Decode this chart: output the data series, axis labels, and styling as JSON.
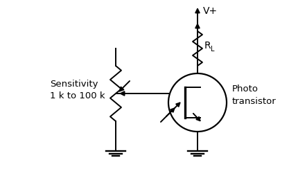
{
  "bg_color": "#ffffff",
  "line_color": "#000000",
  "fig_width": 4.3,
  "fig_height": 2.57,
  "dpi": 100,
  "sensitivity_label": "Sensitivity\n1 k to 100 k",
  "photo_label": "Photo\ntransistor",
  "vplus_label": "V+",
  "rl_label": "R"
}
